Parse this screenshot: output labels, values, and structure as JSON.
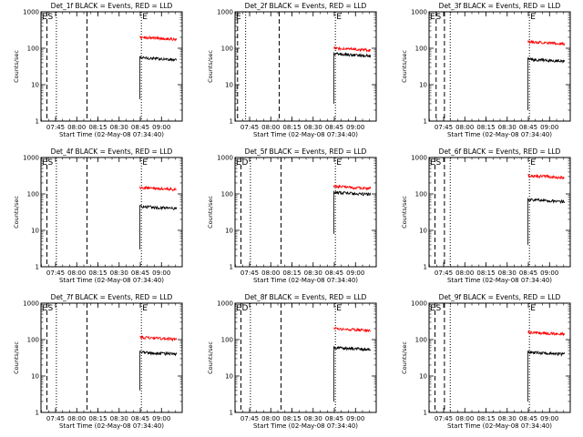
{
  "x_tick_labels": [
    "07:45",
    "08:00",
    "08:15",
    "08:30",
    "08:45",
    "09:00"
  ],
  "xlabel": "Start Time (02-May-08 07:34:40)",
  "ylabel": "Counts/sec",
  "y_tick_labels": [
    "1",
    "10",
    "100",
    "1000"
  ],
  "colors": {
    "events": "#000000",
    "lld": "#ff0000"
  },
  "chart_data": [
    {
      "type": "line",
      "title": "Det_1f BLACK = Events, RED = LLD",
      "xlabel": "Start Time (02-May-08 07:34:40)",
      "ylabel": "Counts/sec",
      "y_scale": "log",
      "ylim": [
        1,
        1000
      ],
      "xlim_minutes": [
        0,
        100
      ],
      "x_ticks_minutes": [
        10.33,
        25.33,
        40.33,
        55.33,
        70.33,
        85.33
      ],
      "markers": [
        {
          "label": "E",
          "t": 0
        },
        {
          "label": "S",
          "t": 4.2
        },
        {
          "label": "E",
          "t": 71.1
        }
      ],
      "dashed_lines": [
        4.2,
        32.6
      ],
      "dotted_lines": [
        10.9,
        71.1
      ],
      "data_start": 70.0,
      "data_end": 96.0,
      "series": [
        {
          "name": "BLACK = Events",
          "spike": 4,
          "mean": 55
        },
        {
          "name": "RED = LLD",
          "mean": 200
        }
      ]
    },
    {
      "type": "line",
      "title": "Det_2f BLACK = Events, RED = LLD",
      "xlabel": "Start Time (02-May-08 07:34:40)",
      "ylabel": "Counts/sec",
      "y_scale": "log",
      "ylim": [
        1,
        1000
      ],
      "xlim_minutes": [
        0,
        100
      ],
      "x_ticks_minutes": [
        10.33,
        25.33,
        40.33,
        55.33,
        70.33,
        85.33
      ],
      "markers": [
        {
          "label": "E",
          "t": 0
        },
        {
          "label": "E",
          "t": 71.1
        }
      ],
      "dashed_lines": [
        1.8,
        31.3
      ],
      "dotted_lines": [
        7.5,
        71.1
      ],
      "data_start": 70.0,
      "data_end": 96.0,
      "series": [
        {
          "name": "BLACK = Events",
          "spike": 3,
          "mean": 70
        },
        {
          "name": "RED = LLD",
          "mean": 100
        }
      ]
    },
    {
      "type": "line",
      "title": "Det_3f BLACK = Events, RED = LLD",
      "xlabel": "Start Time (02-May-08 07:34:40)",
      "ylabel": "Counts/sec",
      "y_scale": "log",
      "ylim": [
        1,
        1000
      ],
      "xlim_minutes": [
        0,
        100
      ],
      "x_ticks_minutes": [
        10.33,
        25.33,
        40.33,
        55.33,
        70.33,
        85.33
      ],
      "markers": [
        {
          "label": "E",
          "t": 0
        },
        {
          "label": "S",
          "t": 4.2
        },
        {
          "label": "E",
          "t": 71.1
        }
      ],
      "dashed_lines": [
        5.0,
        10.9
      ],
      "dotted_lines": [
        15.0,
        71.1
      ],
      "data_start": 70.0,
      "data_end": 96.0,
      "series": [
        {
          "name": "BLACK = Events",
          "spike": 2,
          "mean": 50
        },
        {
          "name": "RED = LLD",
          "mean": 150
        }
      ]
    },
    {
      "type": "line",
      "title": "Det_4f BLACK = Events, RED = LLD",
      "xlabel": "Start Time (02-May-08 07:34:40)",
      "ylabel": "Counts/sec",
      "y_scale": "log",
      "ylim": [
        1,
        1000
      ],
      "xlim_minutes": [
        0,
        100
      ],
      "x_ticks_minutes": [
        10.33,
        25.33,
        40.33,
        55.33,
        70.33,
        85.33
      ],
      "markers": [
        {
          "label": "E",
          "t": 0
        },
        {
          "label": "S",
          "t": 4.2
        },
        {
          "label": "E",
          "t": 71.1
        }
      ],
      "dashed_lines": [
        4.2,
        32.6
      ],
      "dotted_lines": [
        10.9,
        71.1
      ],
      "data_start": 70.0,
      "data_end": 96.0,
      "series": [
        {
          "name": "BLACK = Events",
          "spike": 3,
          "mean": 45
        },
        {
          "name": "RED = LLD",
          "mean": 150
        }
      ]
    },
    {
      "type": "line",
      "title": "Det_5f BLACK = Events, RED = LLD",
      "xlabel": "Start Time (02-May-08 07:34:40)",
      "ylabel": "Counts/sec",
      "y_scale": "log",
      "ylim": [
        1,
        1000
      ],
      "xlim_minutes": [
        0,
        100
      ],
      "x_ticks_minutes": [
        10.33,
        25.33,
        40.33,
        55.33,
        70.33,
        85.33
      ],
      "markers": [
        {
          "label": "E",
          "t": 0
        },
        {
          "label": "D",
          "t": 4.2
        },
        {
          "label": "E",
          "t": 71.1
        }
      ],
      "dashed_lines": [
        4.2,
        32.6
      ],
      "dotted_lines": [
        10.9,
        71.1
      ],
      "data_start": 70.0,
      "data_end": 96.0,
      "series": [
        {
          "name": "BLACK = Events",
          "spike": 8,
          "mean": 110
        },
        {
          "name": "RED = LLD",
          "mean": 160
        }
      ]
    },
    {
      "type": "line",
      "title": "Det_6f BLACK = Events, RED = LLD",
      "xlabel": "Start Time (02-May-08 07:34:40)",
      "ylabel": "Counts/sec",
      "y_scale": "log",
      "ylim": [
        1,
        1000
      ],
      "xlim_minutes": [
        0,
        100
      ],
      "x_ticks_minutes": [
        10.33,
        25.33,
        40.33,
        55.33,
        70.33,
        85.33
      ],
      "markers": [
        {
          "label": "E",
          "t": 0
        },
        {
          "label": "S",
          "t": 4.2
        },
        {
          "label": "E",
          "t": 71.1
        }
      ],
      "dashed_lines": [
        4.2,
        10.9
      ],
      "dotted_lines": [
        15.0,
        71.1
      ],
      "data_start": 70.0,
      "data_end": 96.0,
      "series": [
        {
          "name": "BLACK = Events",
          "spike": 4,
          "mean": 70
        },
        {
          "name": "RED = LLD",
          "mean": 320
        }
      ]
    },
    {
      "type": "line",
      "title": "Det_7f BLACK = Events, RED = LLD",
      "xlabel": "Start Time (02-May-08 07:34:40)",
      "ylabel": "Counts/sec",
      "y_scale": "log",
      "ylim": [
        1,
        1000
      ],
      "xlim_minutes": [
        0,
        100
      ],
      "x_ticks_minutes": [
        10.33,
        25.33,
        40.33,
        55.33,
        70.33,
        85.33
      ],
      "markers": [
        {
          "label": "E",
          "t": 0
        },
        {
          "label": "S",
          "t": 4.2
        },
        {
          "label": "E",
          "t": 71.1
        }
      ],
      "dashed_lines": [
        4.2,
        32.6
      ],
      "dotted_lines": [
        10.9,
        71.1
      ],
      "data_start": 70.0,
      "data_end": 96.0,
      "series": [
        {
          "name": "BLACK = Events",
          "spike": 4,
          "mean": 45
        },
        {
          "name": "RED = LLD",
          "mean": 115
        }
      ]
    },
    {
      "type": "line",
      "title": "Det_8f BLACK = Events, RED = LLD",
      "xlabel": "Start Time (02-May-08 07:34:40)",
      "ylabel": "Counts/sec",
      "y_scale": "log",
      "ylim": [
        1,
        1000
      ],
      "xlim_minutes": [
        0,
        100
      ],
      "x_ticks_minutes": [
        10.33,
        25.33,
        40.33,
        55.33,
        70.33,
        85.33
      ],
      "markers": [
        {
          "label": "E",
          "t": 0
        },
        {
          "label": "D",
          "t": 4.2
        },
        {
          "label": "E",
          "t": 71.1
        }
      ],
      "dashed_lines": [
        4.2,
        32.6
      ],
      "dotted_lines": [
        10.9,
        71.1
      ],
      "data_start": 70.0,
      "data_end": 96.0,
      "series": [
        {
          "name": "BLACK = Events",
          "spike": 2,
          "mean": 60
        },
        {
          "name": "RED = LLD",
          "mean": 200
        }
      ]
    },
    {
      "type": "line",
      "title": "Det_9f BLACK = Events, RED = LLD",
      "xlabel": "Start Time (02-May-08 07:34:40)",
      "ylabel": "Counts/sec",
      "y_scale": "log",
      "ylim": [
        1,
        1000
      ],
      "xlim_minutes": [
        0,
        100
      ],
      "x_ticks_minutes": [
        10.33,
        25.33,
        40.33,
        55.33,
        70.33,
        85.33
      ],
      "markers": [
        {
          "label": "E",
          "t": 0
        },
        {
          "label": "S",
          "t": 4.2
        },
        {
          "label": "E",
          "t": 71.1
        }
      ],
      "dashed_lines": [
        4.2,
        10.9
      ],
      "dotted_lines": [
        15.0,
        71.1
      ],
      "data_start": 70.0,
      "data_end": 96.0,
      "series": [
        {
          "name": "BLACK = Events",
          "spike": 2,
          "mean": 45
        },
        {
          "name": "RED = LLD",
          "mean": 160
        }
      ]
    }
  ]
}
